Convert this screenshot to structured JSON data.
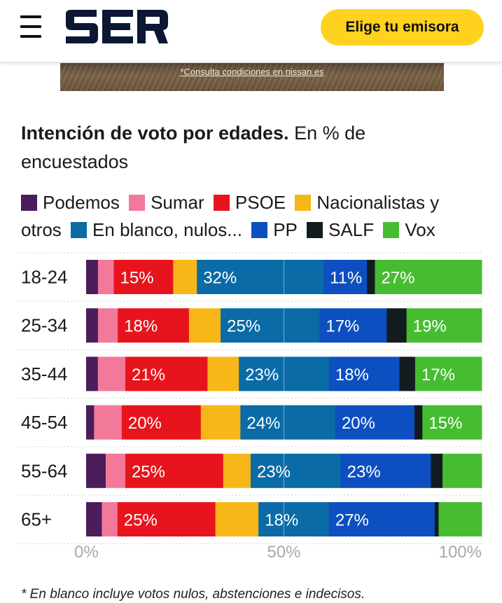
{
  "header": {
    "menu_icon": "hamburger-menu-icon",
    "logo_text": "SER",
    "cta_label": "Elige tu emisora"
  },
  "ad": {
    "text": "*Consulta condiciones en nissan.es"
  },
  "chart_data": {
    "type": "bar",
    "orientation": "horizontal",
    "stacked": true,
    "title": "Intención de voto por edades.",
    "subtitle": "En % de encuestados",
    "categories": [
      "18-24",
      "25-34",
      "35-44",
      "45-54",
      "55-64",
      "65+"
    ],
    "series": [
      {
        "name": "Podemos",
        "color": "#4b1d5b",
        "values": [
          3,
          3,
          3,
          2,
          5,
          4
        ]
      },
      {
        "name": "Sumar",
        "color": "#f2799a",
        "values": [
          4,
          5,
          7,
          7,
          5,
          4
        ]
      },
      {
        "name": "PSOE",
        "color": "#e8141d",
        "values": [
          15,
          18,
          21,
          20,
          25,
          25
        ]
      },
      {
        "name": "Nacionalistas y otros",
        "color": "#f7b718",
        "values": [
          6,
          8,
          8,
          10,
          7,
          11
        ]
      },
      {
        "name": "En blanco, nulos...",
        "color": "#0a6ba6",
        "values": [
          32,
          25,
          23,
          24,
          23,
          18
        ]
      },
      {
        "name": "PP",
        "color": "#0d4fc1",
        "values": [
          11,
          17,
          18,
          20,
          23,
          27
        ]
      },
      {
        "name": "SALF",
        "color": "#121c20",
        "values": [
          2,
          5,
          4,
          2,
          3,
          1
        ]
      },
      {
        "name": "Vox",
        "color": "#46bd31",
        "values": [
          27,
          19,
          17,
          15,
          10,
          11
        ]
      }
    ],
    "data_labels": [
      [
        null,
        null,
        "15%",
        null,
        "32%",
        "11%",
        null,
        "27%"
      ],
      [
        null,
        null,
        "18%",
        null,
        "25%",
        "17%",
        null,
        "19%"
      ],
      [
        null,
        null,
        "21%",
        null,
        "23%",
        "18%",
        null,
        "17%"
      ],
      [
        null,
        null,
        "20%",
        null,
        "24%",
        "20%",
        null,
        "15%"
      ],
      [
        null,
        null,
        "25%",
        null,
        "23%",
        "23%",
        null,
        null
      ],
      [
        null,
        null,
        "25%",
        null,
        "18%",
        "27%",
        null,
        null
      ]
    ],
    "xlim": [
      0,
      100
    ],
    "xticks": [
      "0%",
      "50%",
      "100%"
    ],
    "grid": true,
    "legend_position": "top"
  },
  "footnote": "* En blanco incluye votos nulos, abstenciones e indecisos."
}
